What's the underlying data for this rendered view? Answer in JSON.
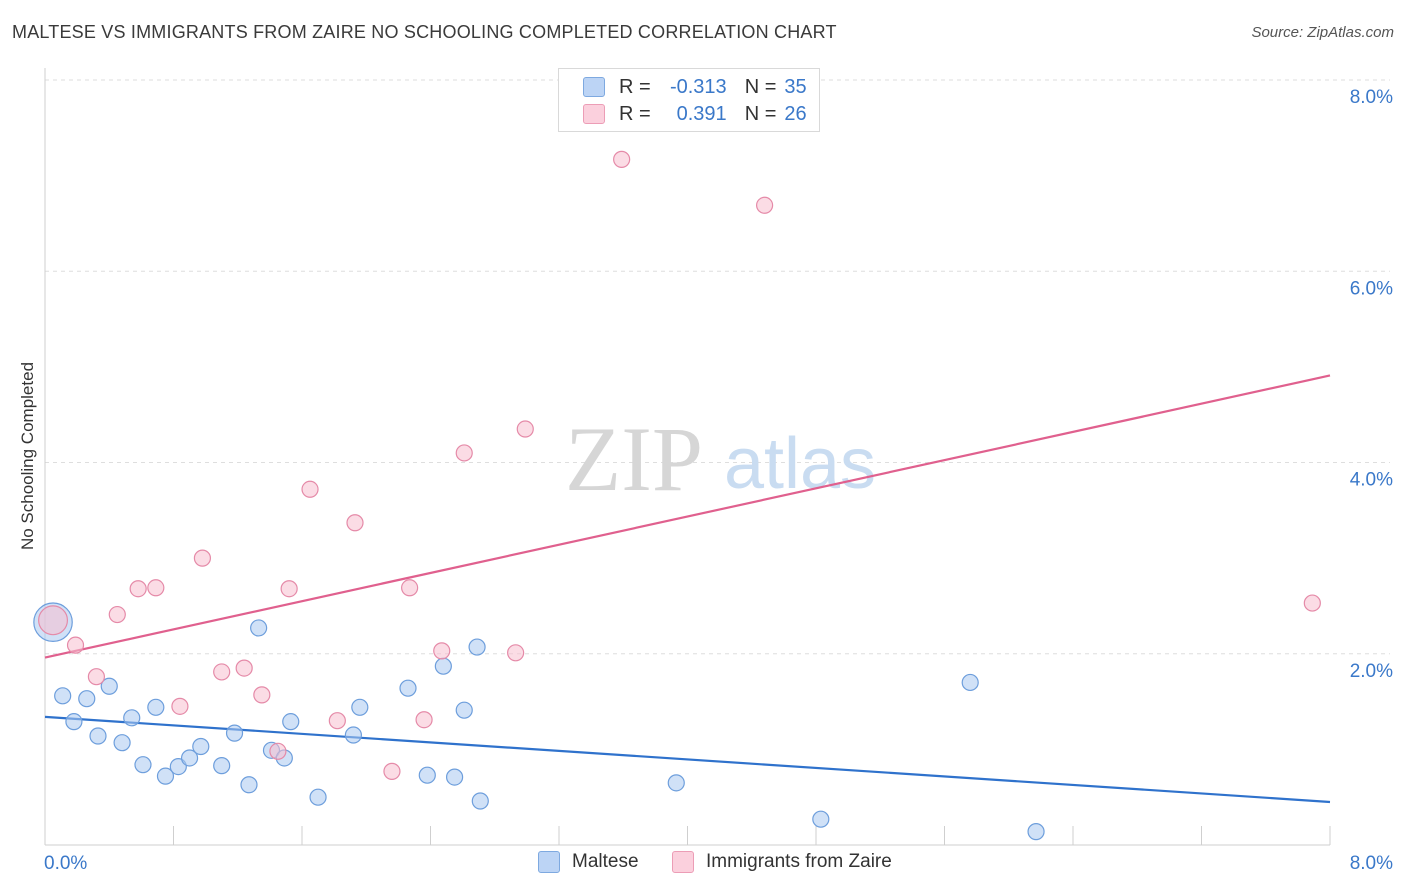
{
  "chart_data": {
    "type": "scatter",
    "title": "MALTESE VS IMMIGRANTS FROM ZAIRE NO SCHOOLING COMPLETED CORRELATION CHART",
    "source": "Source: ZipAtlas.com",
    "xlabel": "",
    "ylabel": "No Schooling Completed",
    "xlim": [
      0,
      8
    ],
    "ylim": [
      0,
      8
    ],
    "x_tick_labels": [
      "0.0%",
      "8.0%"
    ],
    "y_tick_labels": [
      "2.0%",
      "4.0%",
      "6.0%",
      "8.0%"
    ],
    "y_ticks": [
      2,
      4,
      6,
      8
    ],
    "watermark": {
      "zip": "ZIP",
      "atlas": "atlas"
    },
    "legend": {
      "rows": [
        {
          "r_label": "R =",
          "r_value": "-0.313",
          "n_label": "N =",
          "n_value": "35"
        },
        {
          "r_label": "R =",
          "r_value": "0.391",
          "n_label": "N =",
          "n_value": "26"
        }
      ]
    },
    "series": [
      {
        "name": "Maltese",
        "color": "#a9c8f0",
        "stroke": "#6d9edc",
        "line_color": "#2f72cc",
        "trend": {
          "x0": 0,
          "y0": 1.34,
          "x1": 8,
          "y1": 0.45
        },
        "points": [
          [
            0.05,
            2.33,
            2.4
          ],
          [
            0.11,
            1.56,
            1
          ],
          [
            0.18,
            1.29,
            1
          ],
          [
            0.26,
            1.53,
            1
          ],
          [
            0.33,
            1.14,
            1
          ],
          [
            0.4,
            1.66,
            1
          ],
          [
            0.48,
            1.07,
            1
          ],
          [
            0.54,
            1.33,
            1
          ],
          [
            0.61,
            0.84,
            1
          ],
          [
            0.69,
            1.44,
            1
          ],
          [
            0.75,
            0.72,
            1
          ],
          [
            0.83,
            0.82,
            1
          ],
          [
            0.9,
            0.91,
            1
          ],
          [
            0.97,
            1.03,
            1
          ],
          [
            1.1,
            0.83,
            1
          ],
          [
            1.18,
            1.17,
            1
          ],
          [
            1.27,
            0.63,
            1
          ],
          [
            1.33,
            2.27,
            1
          ],
          [
            1.41,
            0.99,
            1
          ],
          [
            1.49,
            0.91,
            1
          ],
          [
            1.53,
            1.29,
            1
          ],
          [
            1.7,
            0.5,
            1
          ],
          [
            1.92,
            1.15,
            1
          ],
          [
            1.96,
            1.44,
            1
          ],
          [
            2.26,
            1.64,
            1
          ],
          [
            2.38,
            0.73,
            1
          ],
          [
            2.48,
            1.87,
            1
          ],
          [
            2.55,
            0.71,
            1
          ],
          [
            2.61,
            1.41,
            1
          ],
          [
            2.69,
            2.07,
            1
          ],
          [
            2.71,
            0.46,
            1
          ],
          [
            3.93,
            0.65,
            1
          ],
          [
            4.83,
            0.27,
            1
          ],
          [
            5.76,
            1.7,
            1
          ],
          [
            6.17,
            0.14,
            1
          ]
        ]
      },
      {
        "name": "Immigrants from Zaire",
        "color": "#f7bfd0",
        "stroke": "#e58aa8",
        "line_color": "#e0608e",
        "trend": {
          "x0": 0,
          "y0": 1.96,
          "x1": 8,
          "y1": 4.91
        },
        "points": [
          [
            0.05,
            2.35,
            1.8
          ],
          [
            0.19,
            2.09,
            1
          ],
          [
            0.32,
            1.76,
            1
          ],
          [
            0.45,
            2.41,
            1
          ],
          [
            0.58,
            2.68,
            1
          ],
          [
            0.69,
            2.69,
            1
          ],
          [
            0.84,
            1.45,
            1
          ],
          [
            0.98,
            3.0,
            1
          ],
          [
            1.1,
            1.81,
            1
          ],
          [
            1.24,
            1.85,
            1
          ],
          [
            1.35,
            1.57,
            1
          ],
          [
            1.45,
            0.98,
            1
          ],
          [
            1.52,
            2.68,
            1
          ],
          [
            1.65,
            3.72,
            1
          ],
          [
            1.82,
            1.3,
            1
          ],
          [
            1.93,
            3.37,
            1
          ],
          [
            2.16,
            0.77,
            1
          ],
          [
            2.27,
            2.69,
            1
          ],
          [
            2.36,
            1.31,
            1
          ],
          [
            2.47,
            2.03,
            1
          ],
          [
            2.61,
            4.1,
            1
          ],
          [
            2.93,
            2.01,
            1
          ],
          [
            2.99,
            4.35,
            1
          ],
          [
            3.59,
            7.17,
            1
          ],
          [
            4.48,
            6.69,
            1
          ],
          [
            7.89,
            2.53,
            1
          ]
        ]
      }
    ]
  }
}
